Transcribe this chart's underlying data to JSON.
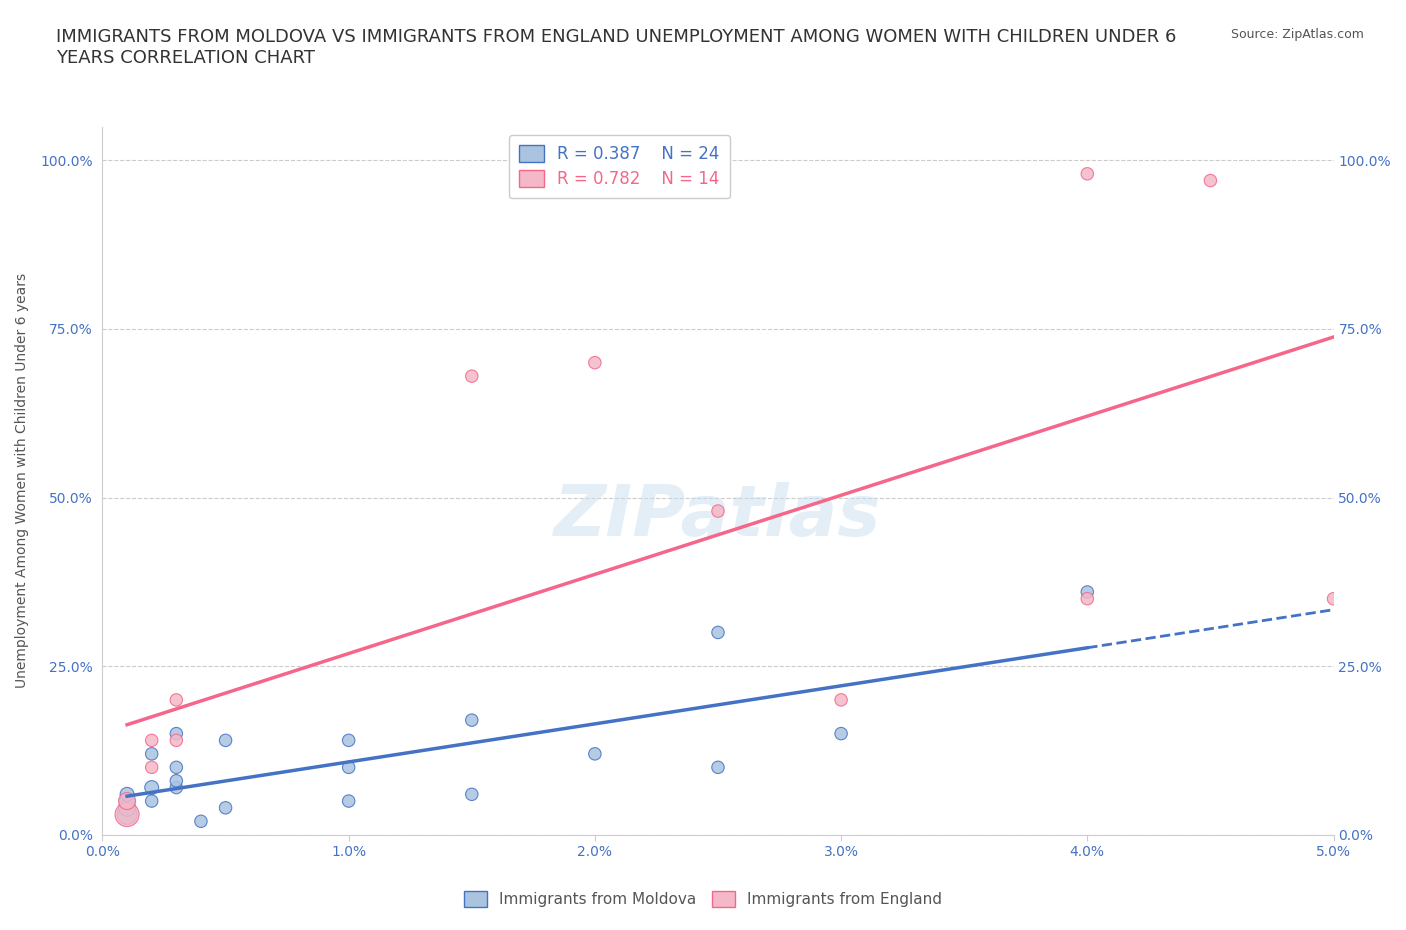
{
  "title": "IMMIGRANTS FROM MOLDOVA VS IMMIGRANTS FROM ENGLAND UNEMPLOYMENT AMONG WOMEN WITH CHILDREN UNDER 6\nYEARS CORRELATION CHART",
  "source": "Source: ZipAtlas.com",
  "xlabel": "",
  "ylabel": "Unemployment Among Women with Children Under 6 years",
  "xlim": [
    0.0,
    0.05
  ],
  "ylim": [
    0.0,
    1.05
  ],
  "xtick_labels": [
    "0.0%",
    "1.0%",
    "2.0%",
    "3.0%",
    "4.0%",
    "5.0%"
  ],
  "xtick_vals": [
    0.0,
    0.01,
    0.02,
    0.03,
    0.04,
    0.05
  ],
  "ytick_labels": [
    "0.0%",
    "25.0%",
    "50.0%",
    "75.0%",
    "100.0%"
  ],
  "ytick_vals": [
    0.0,
    0.25,
    0.5,
    0.75,
    1.0
  ],
  "grid_color": "#cccccc",
  "background_color": "#ffffff",
  "moldova_color": "#aac4e0",
  "england_color": "#f4b8c8",
  "moldova_line_color": "#4472c4",
  "england_line_color": "#f4678a",
  "moldova_R": 0.387,
  "moldova_N": 24,
  "england_R": 0.782,
  "england_N": 14,
  "legend_R_color": "#4472c4",
  "legend_N_color": "#f4b800",
  "moldova_x": [
    0.001,
    0.001,
    0.001,
    0.001,
    0.002,
    0.002,
    0.002,
    0.003,
    0.003,
    0.003,
    0.003,
    0.004,
    0.005,
    0.005,
    0.01,
    0.01,
    0.01,
    0.015,
    0.015,
    0.02,
    0.025,
    0.025,
    0.03,
    0.04
  ],
  "moldova_y": [
    0.03,
    0.04,
    0.05,
    0.06,
    0.05,
    0.07,
    0.12,
    0.07,
    0.08,
    0.1,
    0.15,
    0.02,
    0.04,
    0.14,
    0.05,
    0.1,
    0.14,
    0.17,
    0.06,
    0.12,
    0.3,
    0.1,
    0.15,
    0.36
  ],
  "moldova_size": [
    200,
    150,
    120,
    100,
    80,
    100,
    80,
    80,
    80,
    80,
    80,
    80,
    80,
    80,
    80,
    80,
    80,
    80,
    80,
    80,
    80,
    80,
    80,
    80
  ],
  "england_x": [
    0.001,
    0.001,
    0.002,
    0.002,
    0.003,
    0.003,
    0.015,
    0.02,
    0.025,
    0.03,
    0.04,
    0.04,
    0.045,
    0.05
  ],
  "england_y": [
    0.03,
    0.05,
    0.1,
    0.14,
    0.14,
    0.2,
    0.68,
    0.7,
    0.48,
    0.2,
    0.35,
    0.98,
    0.97,
    0.35
  ],
  "england_size": [
    300,
    150,
    80,
    80,
    80,
    80,
    80,
    80,
    80,
    80,
    80,
    80,
    80,
    80
  ],
  "watermark": "ZIPatlas",
  "title_fontsize": 13,
  "axis_label_fontsize": 10,
  "tick_fontsize": 10
}
